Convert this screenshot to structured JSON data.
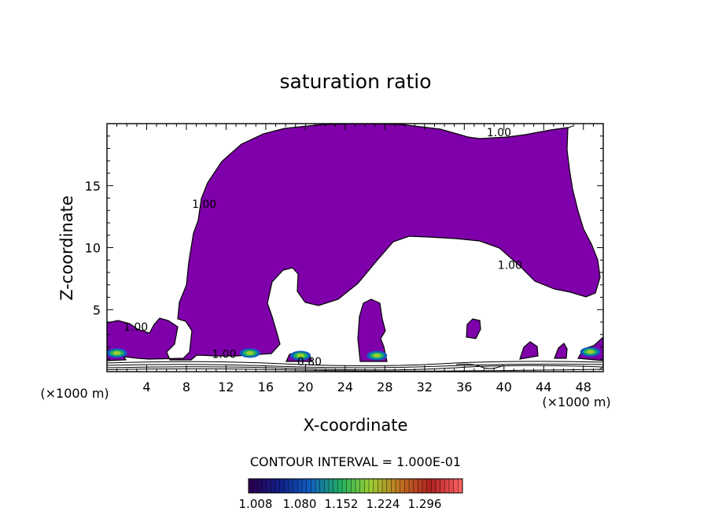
{
  "chart_data": {
    "type": "heatmap",
    "title": "saturation ratio",
    "xlabel": "X-coordinate",
    "ylabel": "Z-coordinate",
    "x_unit": "(×1000 m)",
    "x_unit_right": "(×1000 m)",
    "xlim": [
      0,
      50
    ],
    "ylim": [
      0,
      20
    ],
    "x_ticks": [
      4,
      8,
      12,
      16,
      20,
      24,
      28,
      32,
      36,
      40,
      44,
      48
    ],
    "y_ticks": [
      5,
      10,
      15
    ],
    "contour_interval_label": "CONTOUR INTERVAL = 1.000E-01",
    "fill_color": "#7f00aa",
    "contour_labels": [
      {
        "text": "1.00",
        "x": 39.5,
        "y": 19.0
      },
      {
        "text": "1.00",
        "x": 9.8,
        "y": 13.2
      },
      {
        "text": "1.00",
        "x": 40.6,
        "y": 8.3
      },
      {
        "text": "1.00",
        "x": 2.9,
        "y": 3.3
      },
      {
        "text": "1.00",
        "x": 11.8,
        "y": 1.1
      },
      {
        "text": "0.80",
        "x": 20.4,
        "y": 0.5
      }
    ],
    "colorbar": {
      "ticks": [
        "1.008",
        "1.080",
        "1.152",
        "1.224",
        "1.296"
      ],
      "colors": [
        "#2a0050",
        "#10208a",
        "#1060c0",
        "#20b060",
        "#9acd32",
        "#c07020",
        "#b02020",
        "#ff6060"
      ]
    },
    "supersaturation_patches": [
      {
        "x": 1.0,
        "y": 1.5
      },
      {
        "x": 14.4,
        "y": 1.5
      },
      {
        "x": 19.5,
        "y": 1.3
      },
      {
        "x": 27.2,
        "y": 1.3
      },
      {
        "x": 48.7,
        "y": 1.6
      }
    ]
  }
}
